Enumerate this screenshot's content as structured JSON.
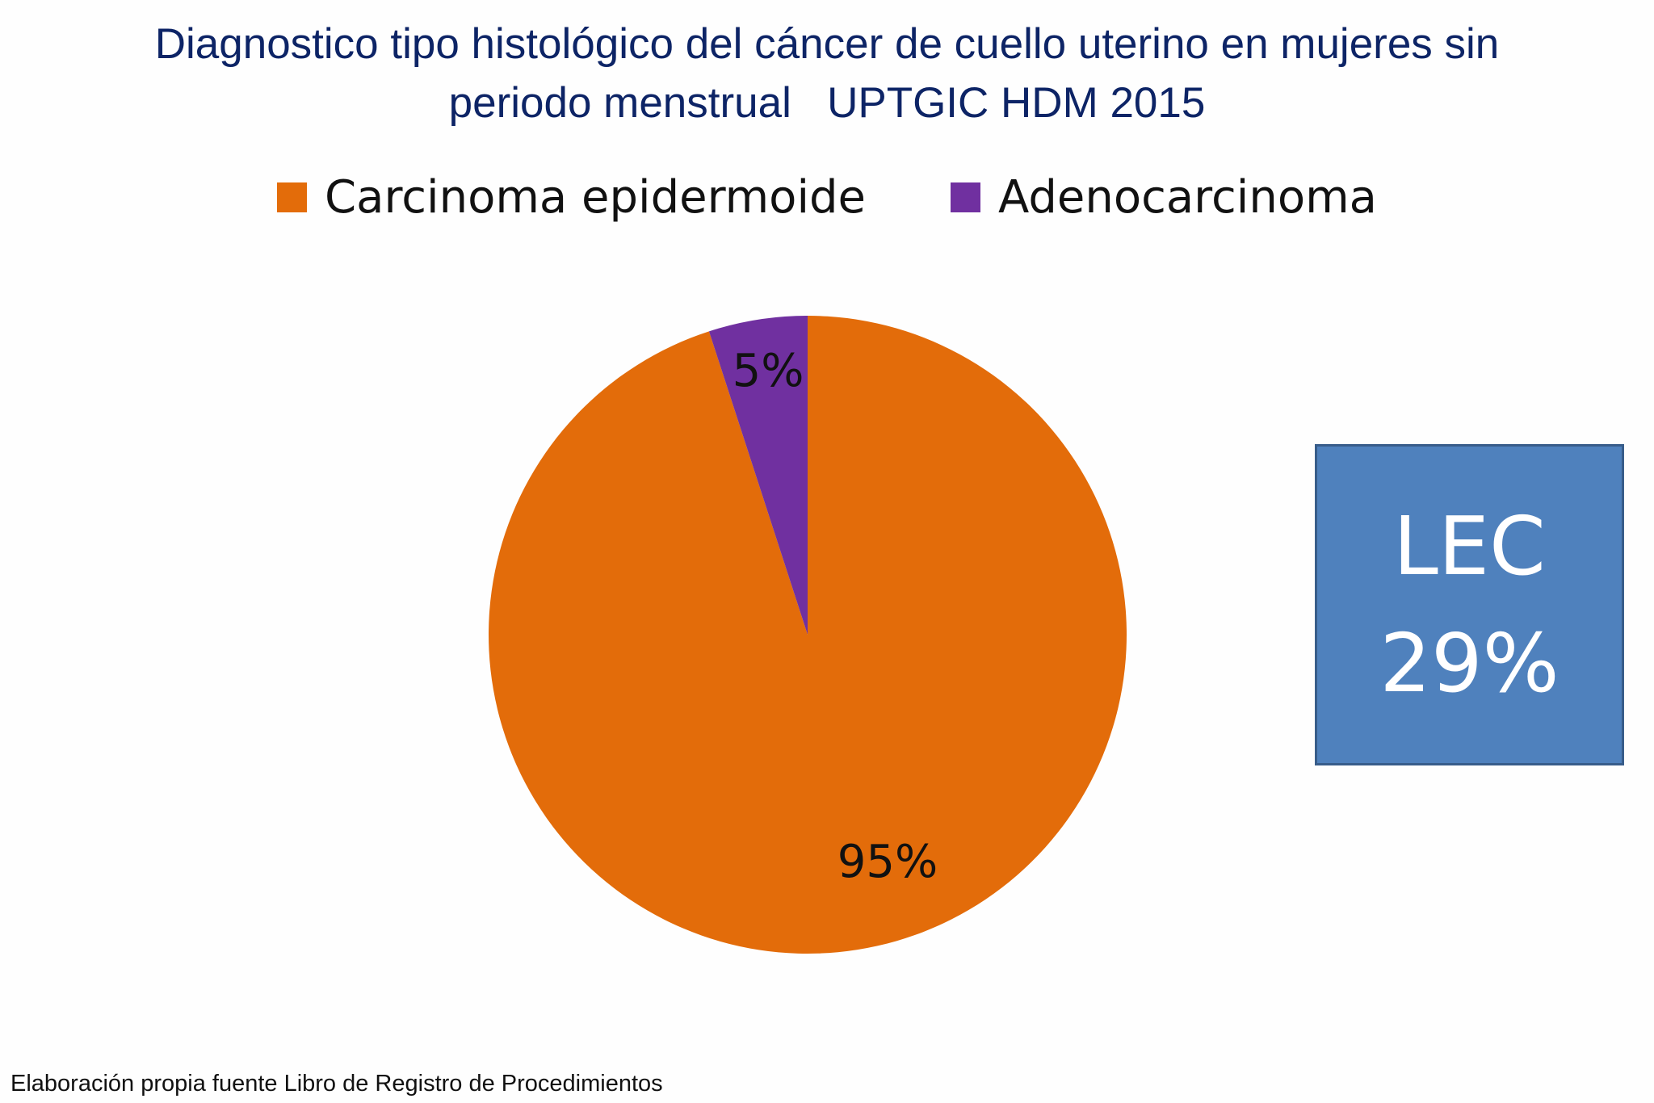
{
  "chart_data": {
    "type": "pie",
    "title_lines": [
      "Diagnostico tipo histológico del cáncer de cuello uterino en mujeres sin",
      "periodo menstrual   UPTGIC HDM 2015"
    ],
    "categories": [
      "Carcinoma epidermoide",
      "Adenocarcinoma"
    ],
    "values": [
      95,
      5
    ],
    "data_labels": [
      "95%",
      "5%"
    ],
    "colors": [
      "#e36c0a",
      "#7030a0"
    ],
    "legend_placement": "top"
  },
  "callout": {
    "line1": "LEC",
    "line2": "29%"
  },
  "footer": "Elaboración propia fuente Libro de Registro de Procedimientos"
}
